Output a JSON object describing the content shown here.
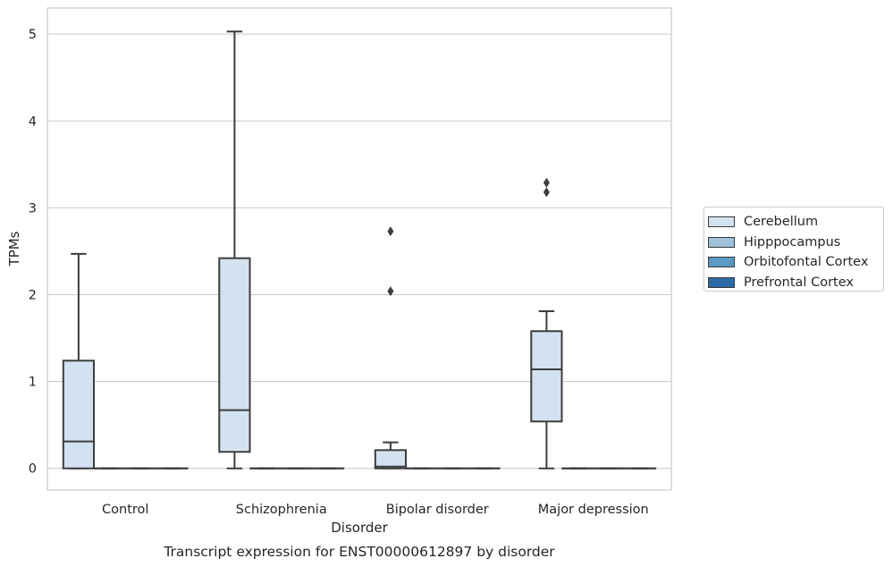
{
  "chart_data": {
    "type": "box",
    "title": "Transcript expression for ENST00000612897 by disorder",
    "xlabel": "Disorder",
    "ylabel": "TPMs",
    "categories": [
      "Control",
      "Schizophrenia",
      "Bipolar disorder",
      "Major depression"
    ],
    "ylim": [
      -0.25,
      5.3
    ],
    "yticks": [
      "0",
      "1",
      "2",
      "3",
      "4",
      "5"
    ],
    "grid": true,
    "legend_position": "right",
    "series": [
      {
        "name": "Cerebellum",
        "color": "#d3e2f1",
        "boxes": [
          {
            "whislo": 0,
            "q1": 0,
            "med": 0.31,
            "q3": 1.24,
            "whishi": 2.47,
            "fliers": []
          },
          {
            "whislo": 0,
            "q1": 0.19,
            "med": 0.67,
            "q3": 2.42,
            "whishi": 5.03,
            "fliers": []
          },
          {
            "whislo": 0,
            "q1": 0,
            "med": 0.02,
            "q3": 0.21,
            "whishi": 0.3,
            "fliers": [
              2.04,
              2.73
            ]
          },
          {
            "whislo": 0,
            "q1": 0.54,
            "med": 1.14,
            "q3": 1.58,
            "whishi": 1.81,
            "fliers": [
              3.18,
              3.29
            ]
          }
        ]
      },
      {
        "name": "Hipppocampus",
        "color": "#9ec2dc",
        "boxes": [
          {
            "whislo": 0,
            "q1": 0,
            "med": 0,
            "q3": 0,
            "whishi": 0,
            "fliers": []
          },
          {
            "whislo": 0,
            "q1": 0,
            "med": 0,
            "q3": 0,
            "whishi": 0,
            "fliers": []
          },
          {
            "whislo": 0,
            "q1": 0,
            "med": 0,
            "q3": 0,
            "whishi": 0,
            "fliers": []
          },
          {
            "whislo": 0,
            "q1": 0,
            "med": 0,
            "q3": 0,
            "whishi": 0,
            "fliers": []
          }
        ]
      },
      {
        "name": "Orbitofontal Cortex",
        "color": "#5b9ac7",
        "boxes": [
          {
            "whislo": 0,
            "q1": 0,
            "med": 0,
            "q3": 0,
            "whishi": 0,
            "fliers": []
          },
          {
            "whislo": 0,
            "q1": 0,
            "med": 0,
            "q3": 0,
            "whishi": 0,
            "fliers": []
          },
          {
            "whislo": 0,
            "q1": 0,
            "med": 0,
            "q3": 0,
            "whishi": 0,
            "fliers": []
          },
          {
            "whislo": 0,
            "q1": 0,
            "med": 0,
            "q3": 0,
            "whishi": 0,
            "fliers": []
          }
        ]
      },
      {
        "name": "Prefrontal Cortex",
        "color": "#2b6ba8",
        "boxes": [
          {
            "whislo": 0,
            "q1": 0,
            "med": 0,
            "q3": 0,
            "whishi": 0,
            "fliers": []
          },
          {
            "whislo": 0,
            "q1": 0,
            "med": 0,
            "q3": 0,
            "whishi": 0,
            "fliers": []
          },
          {
            "whislo": 0,
            "q1": 0,
            "med": 0,
            "q3": 0,
            "whishi": 0,
            "fliers": []
          },
          {
            "whislo": 0,
            "q1": 0,
            "med": 0,
            "q3": 0,
            "whishi": 0,
            "fliers": []
          }
        ]
      }
    ]
  }
}
